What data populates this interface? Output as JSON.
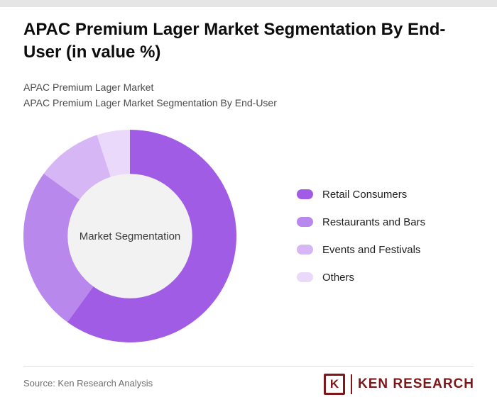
{
  "page": {
    "title": "APAC Premium Lager Market Segmentation By End-User (in value %)",
    "subtitle1": "APAC Premium Lager Market",
    "subtitle2": "APAC Premium Lager Market Segmentation By End-User",
    "source": "Source: Ken Research Analysis",
    "logo": {
      "letter": "K",
      "brand": "KEN RESEARCH",
      "color": "#7e1719"
    }
  },
  "chart_data": {
    "type": "pie",
    "subtype": "donut",
    "title": "APAC Premium Lager Market Segmentation By End-User (in value %)",
    "center_label": "Market Segmentation",
    "center_fill": "#f2f2f2",
    "legend_position": "right",
    "categories": [
      "Retail Consumers",
      "Restaurants and Bars",
      "Events and Festivals",
      "Others"
    ],
    "values": [
      60,
      25,
      10,
      5
    ],
    "colors": [
      "#a15ce6",
      "#b888ec",
      "#d6b6f5",
      "#ead9fb"
    ],
    "start_angle_deg": -90,
    "direction": "clockwise",
    "inner_radius_ratio": 0.585
  }
}
